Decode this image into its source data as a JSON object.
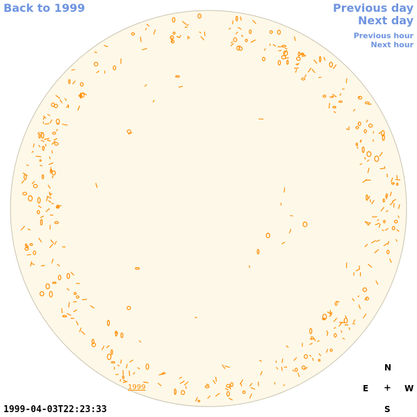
{
  "nav": {
    "back_label": "Back to 1999",
    "prev_day_label": "Previous day",
    "next_day_label": "Next day",
    "prev_hour_label": "Previous hour",
    "next_hour_label": "Next hour"
  },
  "timestamp": "1999-04-03T22:23:33",
  "year_label": "1999",
  "compass": {
    "north": "N",
    "south": "S",
    "east": "E",
    "west": "W",
    "center": "+"
  },
  "colors": {
    "link": "#6f95e0",
    "disk_fill": "#fdf8e8",
    "disk_edge": "#c9c3b0",
    "feature": "#ff8c00"
  },
  "icons": {
    "solar_disk": "solar-disk-icon"
  }
}
